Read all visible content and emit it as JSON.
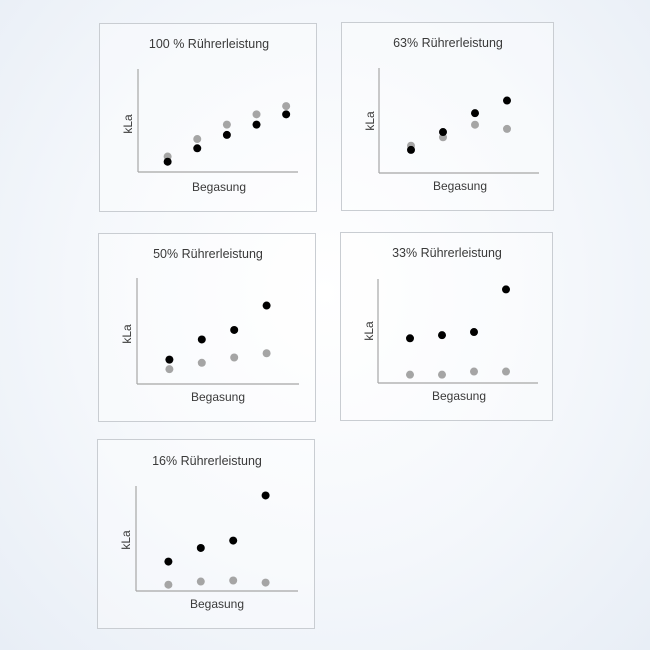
{
  "colors": {
    "series1": "#a5a5a5",
    "series2": "#000000",
    "axis": "#a6a6a6",
    "text": "#3a3a3a"
  },
  "chart_data": [
    {
      "type": "scatter",
      "title": "100 % Rührerleistung",
      "xlabel": "Begasung",
      "ylabel": "kLa",
      "x": [
        1,
        2,
        3,
        4,
        5
      ],
      "xlim": [
        0,
        5.4
      ],
      "ylim": [
        0,
        10
      ],
      "grid": false,
      "series": [
        {
          "values": [
            1.5,
            3.2,
            4.6,
            5.6,
            6.4
          ]
        },
        {
          "values": [
            1.0,
            2.3,
            3.6,
            4.6,
            5.6
          ]
        }
      ]
    },
    {
      "type": "scatter",
      "title": "63% Rührerleistung",
      "xlabel": "Begasung",
      "ylabel": "kLa",
      "x": [
        1,
        2,
        3,
        4
      ],
      "xlim": [
        0,
        5
      ],
      "ylim": [
        0,
        10
      ],
      "grid": false,
      "series": [
        {
          "values": [
            2.6,
            3.4,
            4.6,
            4.2
          ]
        },
        {
          "values": [
            2.2,
            3.9,
            5.7,
            6.9
          ]
        }
      ]
    },
    {
      "type": "scatter",
      "title": "50% Rührerleistung",
      "xlabel": "Begasung",
      "ylabel": "kLa",
      "x": [
        1,
        2,
        3,
        4
      ],
      "xlim": [
        0,
        5
      ],
      "ylim": [
        0,
        10
      ],
      "grid": false,
      "series": [
        {
          "values": [
            1.4,
            2.0,
            2.5,
            2.9
          ]
        },
        {
          "values": [
            2.3,
            4.2,
            5.1,
            7.4
          ]
        }
      ]
    },
    {
      "type": "scatter",
      "title": "33% Rührerleistung",
      "xlabel": "Begasung",
      "ylabel": "kLa",
      "x": [
        1,
        2,
        3,
        4
      ],
      "xlim": [
        0,
        5
      ],
      "ylim": [
        0,
        10
      ],
      "grid": false,
      "series": [
        {
          "values": [
            0.8,
            0.8,
            1.1,
            1.1
          ]
        },
        {
          "values": [
            4.3,
            4.6,
            4.9,
            9.0
          ]
        }
      ]
    },
    {
      "type": "scatter",
      "title": "16% Rührerleistung",
      "xlabel": "Begasung",
      "ylabel": "kLa",
      "x": [
        1,
        2,
        3,
        4
      ],
      "xlim": [
        0,
        5
      ],
      "ylim": [
        0,
        10
      ],
      "grid": false,
      "series": [
        {
          "values": [
            0.6,
            0.9,
            1.0,
            0.8
          ]
        },
        {
          "values": [
            2.8,
            4.1,
            4.8,
            9.1
          ]
        }
      ]
    }
  ]
}
